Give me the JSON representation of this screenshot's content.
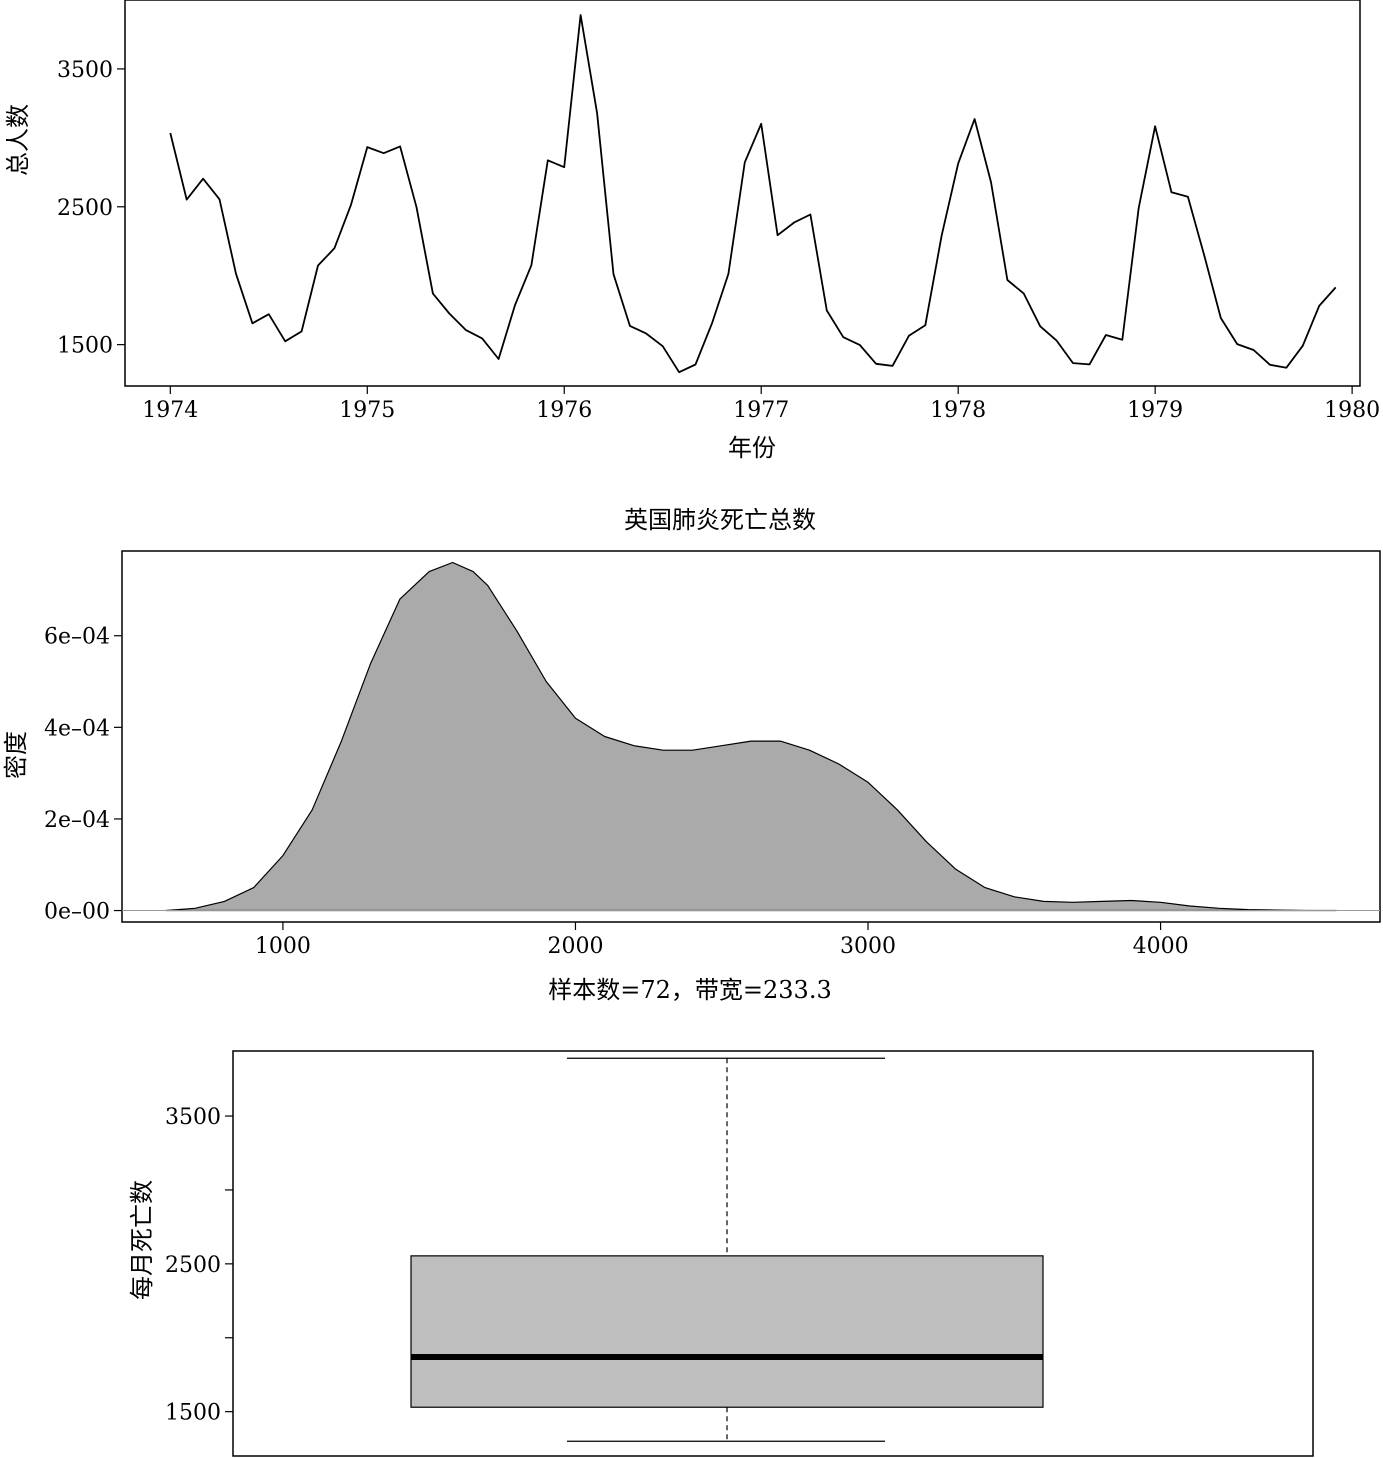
{
  "chart_data": [
    {
      "type": "line",
      "title": "",
      "xlabel": "年份",
      "ylabel": "总人数",
      "xlim": [
        1973.77,
        1980.04
      ],
      "ylim": [
        1200,
        4000
      ],
      "xticks": [
        1974,
        1975,
        1976,
        1977,
        1978,
        1979,
        1980
      ],
      "yticks": [
        1500,
        2500,
        3500
      ],
      "series": [
        {
          "x_start": 1974.0,
          "x_step": 0.08333,
          "values": [
            3035,
            2552,
            2704,
            2554,
            2014,
            1655,
            1721,
            1524,
            1596,
            2074,
            2199,
            2512,
            2933,
            2889,
            2938,
            2497,
            1870,
            1726,
            1607,
            1545,
            1396,
            1787,
            2076,
            2837,
            2787,
            3891,
            3179,
            2011,
            1636,
            1580,
            1489,
            1300,
            1356,
            1653,
            2013,
            2823,
            3102,
            2294,
            2385,
            2444,
            1748,
            1554,
            1498,
            1361,
            1346,
            1564,
            1640,
            2293,
            2815,
            3137,
            2679,
            1969,
            1870,
            1633,
            1529,
            1366,
            1357,
            1570,
            1535,
            2491,
            3084,
            2605,
            2573,
            2143,
            1693,
            1504,
            1461,
            1354,
            1333,
            1492,
            1781,
            1915
          ]
        }
      ]
    },
    {
      "type": "area",
      "title": "英国肺炎死亡总数",
      "xlabel": "样本数=72，带宽=233.3",
      "ylabel": "密度",
      "xlim": [
        450,
        4750
      ],
      "ylim": [
        -2.5e-05,
        0.000785
      ],
      "xticks": [
        1000,
        2000,
        3000,
        4000
      ],
      "ytick_labels": [
        "0e–00",
        "2e–04",
        "4e–04",
        "6e–04"
      ],
      "ytick_values": [
        0,
        0.0002,
        0.0004,
        0.0006
      ],
      "x": [
        600,
        700,
        800,
        900,
        1000,
        1100,
        1200,
        1300,
        1400,
        1500,
        1580,
        1650,
        1700,
        1800,
        1900,
        2000,
        2100,
        2200,
        2300,
        2400,
        2500,
        2600,
        2700,
        2800,
        2900,
        3000,
        3100,
        3200,
        3300,
        3400,
        3500,
        3600,
        3700,
        3800,
        3900,
        4000,
        4100,
        4200,
        4300,
        4400,
        4500,
        4600
      ],
      "values": [
        0.0,
        5e-06,
        2e-05,
        5e-05,
        0.00012,
        0.00022,
        0.00037,
        0.00054,
        0.00068,
        0.00074,
        0.00076,
        0.00074,
        0.00071,
        0.00061,
        0.0005,
        0.00042,
        0.00038,
        0.00036,
        0.00035,
        0.00035,
        0.00036,
        0.00037,
        0.00037,
        0.00035,
        0.00032,
        0.00028,
        0.00022,
        0.00015,
        9e-05,
        5e-05,
        3e-05,
        2e-05,
        1.8e-05,
        2e-05,
        2.2e-05,
        1.8e-05,
        1e-05,
        5e-06,
        2e-06,
        1e-06,
        0.0,
        0.0
      ],
      "fill_color": "#aaaaaa"
    },
    {
      "type": "box",
      "title": "",
      "xlabel": "",
      "ylabel": "每月死亡数",
      "ylim": [
        1200,
        3940
      ],
      "yticks": [
        1500,
        2000,
        2500,
        3000,
        3500
      ],
      "ytick_labels": [
        "1500",
        "",
        "2500",
        "",
        "3500"
      ],
      "whisker_low": 1300,
      "q1": 1530,
      "median": 1870,
      "q3": 2554,
      "whisker_high": 3891,
      "fill_color": "#bebebe"
    }
  ]
}
